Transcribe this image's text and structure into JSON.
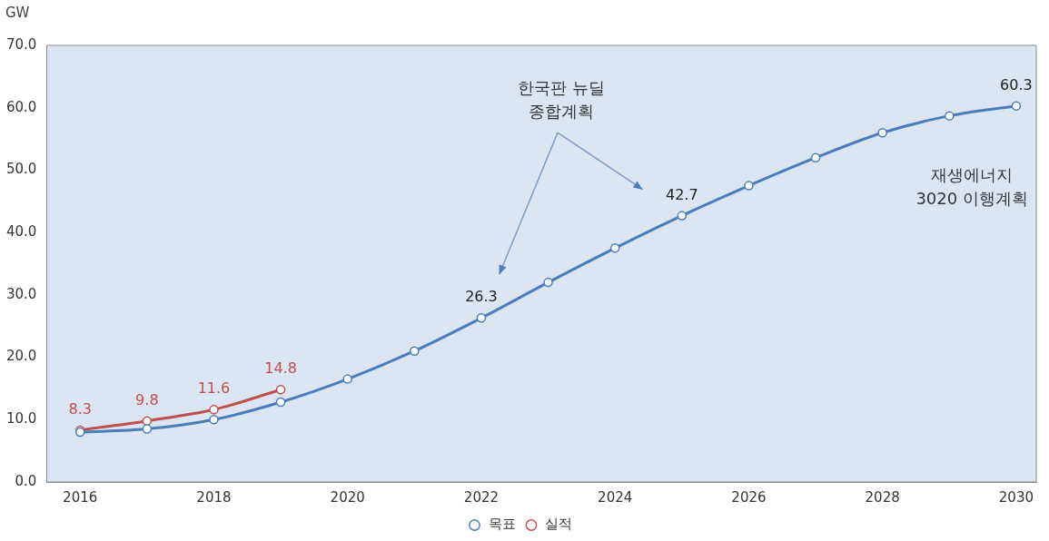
{
  "chart_data": {
    "type": "line",
    "ylabel": "GW",
    "xlim": [
      2015.5,
      2030.3
    ],
    "xticks": [
      2016,
      2018,
      2020,
      2022,
      2024,
      2026,
      2028,
      2030
    ],
    "ylim": [
      0,
      70
    ],
    "yticks": [
      {
        "value": 0,
        "label": "0.0"
      },
      {
        "value": 10,
        "label": "10.0"
      },
      {
        "value": 20,
        "label": "20.0"
      },
      {
        "value": 30,
        "label": "30.0"
      },
      {
        "value": 40,
        "label": "40.0"
      },
      {
        "value": 50,
        "label": "50.0"
      },
      {
        "value": 60,
        "label": "60.0"
      },
      {
        "value": 70,
        "label": "70.0"
      }
    ],
    "grid": false,
    "legend": "bottom",
    "marker": "circle",
    "line_style": "solid",
    "series": [
      {
        "name": "목표",
        "color": "#4a7ebb",
        "x": [
          2016,
          2017,
          2018,
          2019,
          2020,
          2021,
          2022,
          2023,
          2024,
          2025,
          2026,
          2027,
          2028,
          2029,
          2030
        ],
        "values": [
          8.0,
          8.5,
          10.0,
          12.8,
          16.5,
          21.0,
          26.3,
          32.0,
          37.5,
          42.7,
          47.5,
          52.0,
          56.0,
          58.7,
          60.3
        ],
        "value_labels": [
          null,
          null,
          null,
          null,
          null,
          null,
          "26.3",
          null,
          null,
          "42.7",
          null,
          null,
          null,
          null,
          "60.3"
        ]
      },
      {
        "name": "실적",
        "color": "#c0504d",
        "x": [
          2016,
          2017,
          2018,
          2019
        ],
        "values": [
          8.3,
          9.8,
          11.6,
          14.8
        ],
        "value_labels": [
          "8.3",
          "9.8",
          "11.6",
          "14.8"
        ]
      }
    ],
    "annotations": [
      "한국판 뉴딜\n종합계획",
      "재생에너지\n3020 이행계획"
    ]
  }
}
